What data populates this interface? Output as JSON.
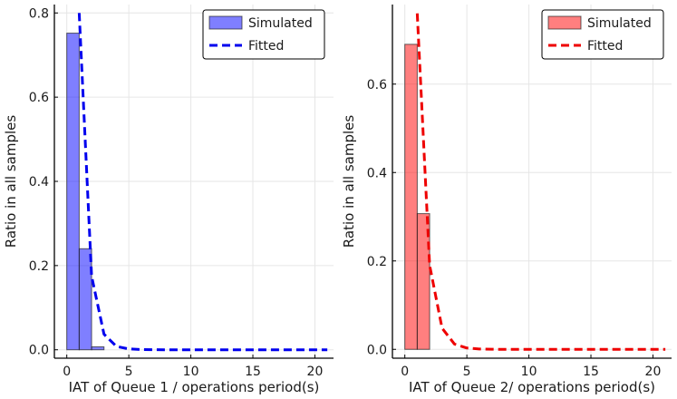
{
  "chart_data": [
    {
      "type": "bar+line",
      "xlabel": "IAT of Queue 1 / operations period(s)",
      "ylabel": "Ratio in all samples",
      "xlim": [
        -1,
        21.5
      ],
      "ylim": [
        -0.02,
        0.82
      ],
      "xticks": [
        0,
        5,
        10,
        15,
        20
      ],
      "yticks": [
        0.0,
        0.2,
        0.4,
        0.6,
        0.8
      ],
      "ytick_labels": [
        "0.0",
        "0.2",
        "0.4",
        "0.6",
        "0.8"
      ],
      "grid": true,
      "legend_position": "top-right",
      "histogram": {
        "name": "Simulated",
        "color": "#0000ff",
        "bin_edges": [
          0,
          1,
          2,
          3
        ],
        "values": [
          0.752,
          0.24,
          0.007
        ]
      },
      "fitted": {
        "name": "Fitted",
        "color": "#0000ee",
        "style": "dashed",
        "x": [
          1,
          2,
          3,
          4,
          5,
          6,
          7,
          8,
          9,
          10,
          11,
          12,
          13,
          14,
          15,
          16,
          17,
          18,
          19,
          20,
          21
        ],
        "y": [
          0.8,
          0.175,
          0.037,
          0.008,
          0.002,
          0.0005,
          0.0001,
          0,
          0,
          0,
          0,
          0,
          0,
          0,
          0,
          0,
          0,
          0,
          0,
          0,
          0
        ]
      }
    },
    {
      "type": "bar+line",
      "xlabel": "IAT of Queue 2/ operations period(s)",
      "ylabel": "Ratio in all samples",
      "xlim": [
        -1,
        21.5
      ],
      "ylim": [
        -0.02,
        0.78
      ],
      "xticks": [
        0,
        5,
        10,
        15,
        20
      ],
      "yticks": [
        0.0,
        0.2,
        0.4,
        0.6
      ],
      "ytick_labels": [
        "0.0",
        "0.2",
        "0.4",
        "0.6"
      ],
      "grid": true,
      "legend_position": "top-right",
      "histogram": {
        "name": "Simulated",
        "color": "#ff0000",
        "bin_edges": [
          0,
          1,
          2
        ],
        "values": [
          0.69,
          0.307
        ]
      },
      "fitted": {
        "name": "Fitted",
        "color": "#ee0000",
        "style": "dashed",
        "x": [
          1,
          2,
          3,
          4,
          5,
          6,
          7,
          8,
          9,
          10,
          11,
          12,
          13,
          14,
          15,
          16,
          17,
          18,
          19,
          20,
          21
        ],
        "y": [
          0.76,
          0.19,
          0.048,
          0.012,
          0.003,
          0.0008,
          0.0002,
          0,
          0,
          0,
          0,
          0,
          0,
          0,
          0,
          0,
          0,
          0,
          0,
          0,
          0
        ]
      }
    }
  ]
}
